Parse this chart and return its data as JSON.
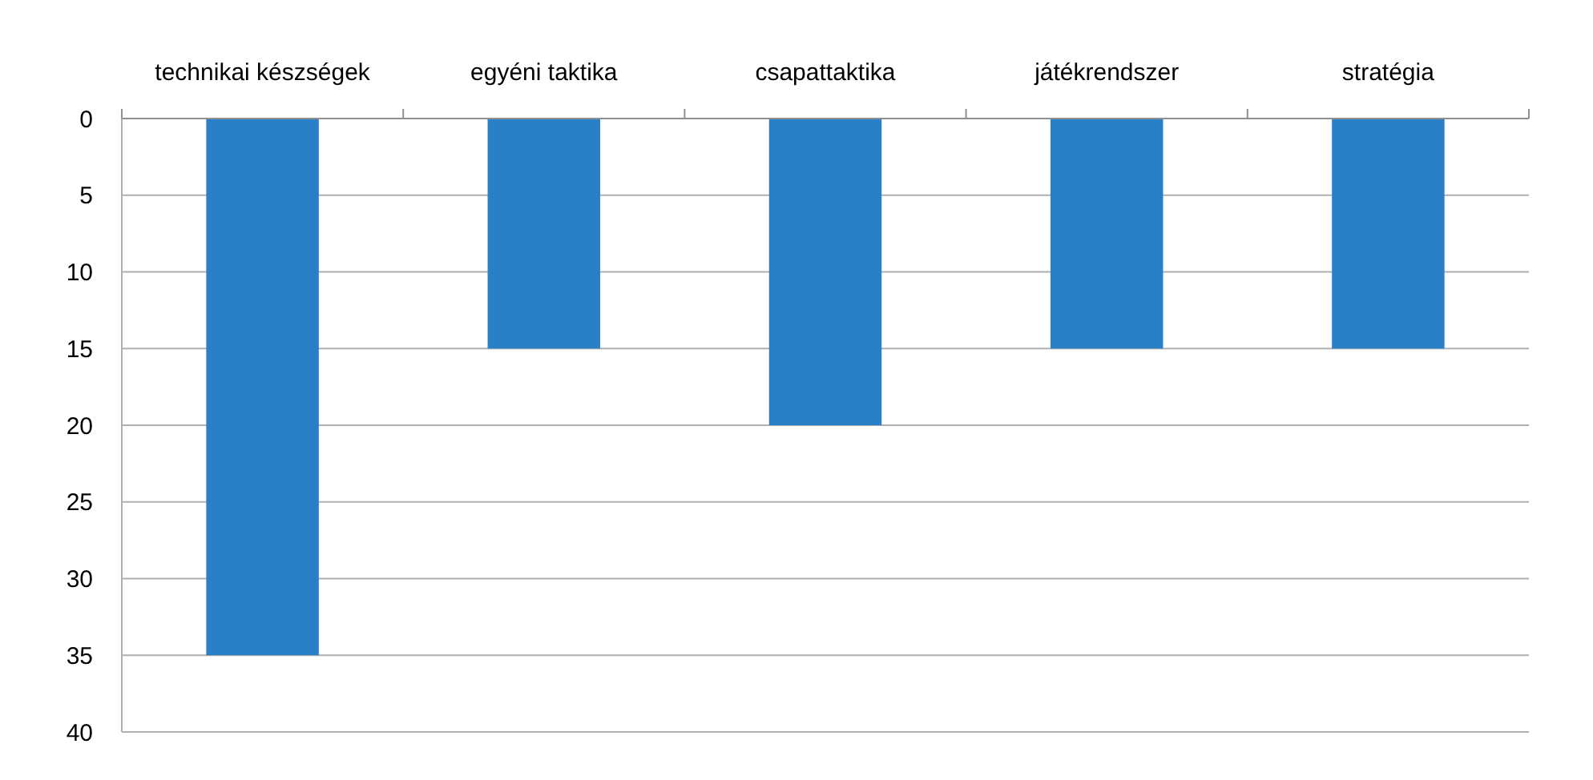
{
  "chart_data": {
    "type": "bar",
    "categories": [
      "technikai készségek",
      "egyéni taktika",
      "csapattaktika",
      "játékrendszer",
      "stratégia"
    ],
    "values": [
      35,
      15,
      20,
      15,
      15
    ],
    "color": "#2a80c6",
    "ylim": [
      40,
      0
    ],
    "yticks": [
      0,
      5,
      10,
      15,
      20,
      25,
      30,
      35,
      40
    ],
    "grid": "y"
  }
}
